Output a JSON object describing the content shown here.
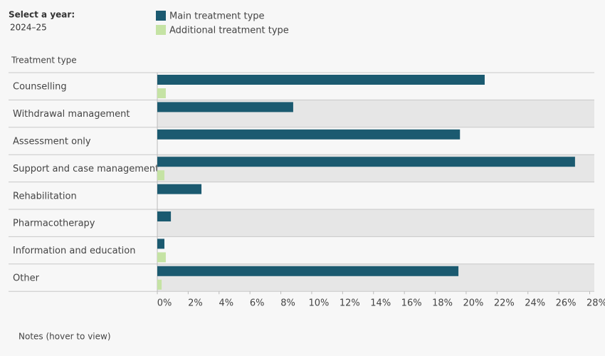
{
  "filter_label": "Select a year:",
  "filter_value": "2024–25",
  "notes": "Notes (hover to view)",
  "chart_data": {
    "type": "hbar",
    "y_label": "Treatment type",
    "categories": [
      "Counselling",
      "Withdrawal management",
      "Assessment only",
      "Support and case management",
      "Rehabilitation",
      "Pharmacotherapy",
      "Information and education",
      "Other"
    ],
    "series": [
      {
        "name": "Main treatment type",
        "color": "#1b5a70",
        "values": [
          21.2,
          8.8,
          19.6,
          27.05,
          2.86,
          0.88,
          0.46,
          19.5
        ]
      },
      {
        "name": "Additional treatment type",
        "color": "#c5e3a4",
        "values": [
          0.55,
          null,
          null,
          0.46,
          null,
          null,
          0.55,
          0.28
        ]
      }
    ],
    "xlim": [
      0,
      28.3
    ],
    "xticks": [
      {
        "value": 0,
        "label": "0%"
      },
      {
        "value": 2,
        "label": "2%"
      },
      {
        "value": 4,
        "label": "4%"
      },
      {
        "value": 6,
        "label": "6%"
      },
      {
        "value": 8,
        "label": "8%"
      },
      {
        "value": 10,
        "label": "10%"
      },
      {
        "value": 12,
        "label": "12%"
      },
      {
        "value": 14,
        "label": "14%"
      },
      {
        "value": 16,
        "label": "16%"
      },
      {
        "value": 18,
        "label": "18%"
      },
      {
        "value": 20,
        "label": "20%"
      },
      {
        "value": 22,
        "label": "22%"
      },
      {
        "value": 24,
        "label": "24%"
      },
      {
        "value": 26,
        "label": "26%"
      },
      {
        "value": 28,
        "label": "28%"
      }
    ],
    "row_banding": true
  }
}
